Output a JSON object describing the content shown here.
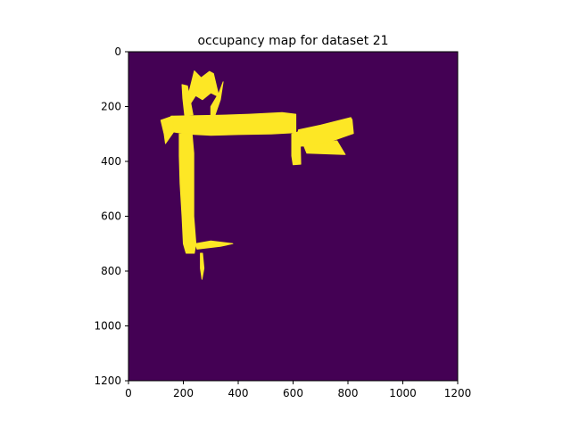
{
  "chart_data": {
    "type": "heatmap",
    "title": "occupancy map for dataset 21",
    "xlabel": "",
    "ylabel": "",
    "xlim": [
      0,
      1200
    ],
    "ylim": [
      1200,
      0
    ],
    "x_ticks": [
      0,
      200,
      400,
      600,
      800,
      1000,
      1200
    ],
    "y_ticks": [
      0,
      200,
      400,
      600,
      800,
      1000,
      1200
    ],
    "x_tick_labels": [
      "0",
      "200",
      "400",
      "600",
      "800",
      "1000",
      "1200"
    ],
    "y_tick_labels": [
      "0",
      "200",
      "400",
      "600",
      "800",
      "1000",
      "1200"
    ],
    "grid": false,
    "colors": {
      "background": "#440154",
      "occupied": "#fde725",
      "edge": "#35b779",
      "axis": "#000000"
    },
    "occupied_regions": [
      {
        "name": "horizontal-corridor",
        "points": [
          [
            155,
            235
          ],
          [
            330,
            232
          ],
          [
            440,
            228
          ],
          [
            560,
            222
          ],
          [
            610,
            228
          ],
          [
            610,
            295
          ],
          [
            520,
            300
          ],
          [
            400,
            302
          ],
          [
            300,
            305
          ],
          [
            210,
            300
          ],
          [
            160,
            292
          ]
        ]
      },
      {
        "name": "left-wing",
        "points": [
          [
            118,
            250
          ],
          [
            160,
            235
          ],
          [
            165,
            292
          ],
          [
            135,
            335
          ],
          [
            130,
            300
          ]
        ]
      },
      {
        "name": "vertical-corridor",
        "points": [
          [
            185,
            300
          ],
          [
            232,
            300
          ],
          [
            238,
            370
          ],
          [
            238,
            480
          ],
          [
            238,
            600
          ],
          [
            246,
            700
          ],
          [
            240,
            735
          ],
          [
            210,
            735
          ],
          [
            200,
            700
          ],
          [
            195,
            600
          ],
          [
            188,
            480
          ],
          [
            185,
            380
          ]
        ]
      },
      {
        "name": "right-room",
        "points": [
          [
            620,
            285
          ],
          [
            700,
            268
          ],
          [
            810,
            240
          ],
          [
            815,
            248
          ],
          [
            820,
            298
          ],
          [
            780,
            312
          ],
          [
            700,
            340
          ],
          [
            620,
            345
          ],
          [
            612,
            320
          ]
        ]
      },
      {
        "name": "right-room-step",
        "points": [
          [
            595,
            300
          ],
          [
            625,
            290
          ],
          [
            628,
            410
          ],
          [
            600,
            412
          ],
          [
            595,
            380
          ]
        ]
      },
      {
        "name": "right-room-lower",
        "points": [
          [
            640,
            345
          ],
          [
            760,
            325
          ],
          [
            790,
            375
          ],
          [
            650,
            370
          ]
        ]
      },
      {
        "name": "upper-spikes",
        "points": [
          [
            240,
            70
          ],
          [
            265,
            95
          ],
          [
            295,
            72
          ],
          [
            310,
            80
          ],
          [
            330,
            165
          ],
          [
            300,
            150
          ],
          [
            270,
            175
          ],
          [
            245,
            160
          ],
          [
            222,
            195
          ],
          [
            210,
            190
          ],
          [
            225,
            130
          ]
        ]
      },
      {
        "name": "upper-spike-right",
        "points": [
          [
            300,
            200
          ],
          [
            330,
            150
          ],
          [
            345,
            110
          ],
          [
            335,
            175
          ],
          [
            315,
            232
          ],
          [
            300,
            232
          ]
        ]
      },
      {
        "name": "upper-spike-left",
        "points": [
          [
            195,
            120
          ],
          [
            215,
            125
          ],
          [
            235,
            230
          ],
          [
            205,
            232
          ],
          [
            198,
            170
          ]
        ]
      },
      {
        "name": "lower-tail",
        "points": [
          [
            262,
            735
          ],
          [
            270,
            735
          ],
          [
            275,
            790
          ],
          [
            268,
            830
          ],
          [
            262,
            790
          ]
        ]
      },
      {
        "name": "lower-tail-right",
        "points": [
          [
            245,
            700
          ],
          [
            300,
            690
          ],
          [
            380,
            700
          ],
          [
            335,
            710
          ],
          [
            250,
            720
          ]
        ]
      }
    ]
  }
}
